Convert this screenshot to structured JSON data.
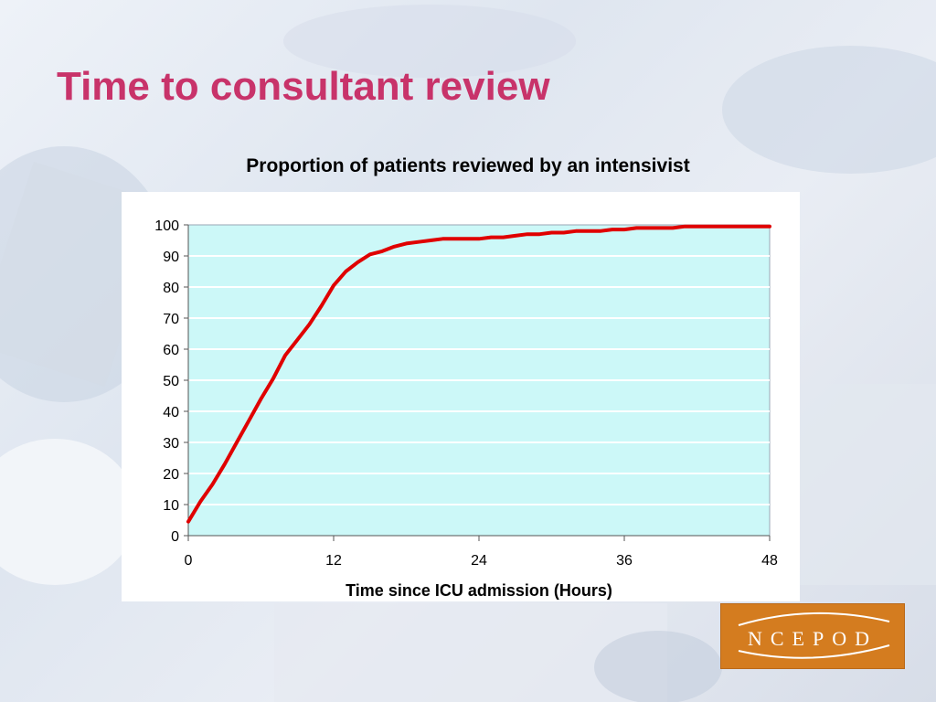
{
  "slide": {
    "title": "Time to consultant review"
  },
  "logo": {
    "text": "NCEPOD"
  },
  "colors": {
    "title": "#c8336a",
    "line": "#e00000",
    "plot_area": "#ccf8f8",
    "gridline": "#ffffff",
    "logo_bg": "#d47c1f"
  },
  "chart_data": {
    "type": "line",
    "title": "Proportion of patients reviewed by an intensivist",
    "xlabel": "Time since ICU admission (Hours)",
    "ylabel": "",
    "xlim": [
      0,
      48
    ],
    "ylim": [
      0,
      100
    ],
    "xticks": [
      0,
      12,
      24,
      36,
      48
    ],
    "yticks": [
      0,
      10,
      20,
      30,
      40,
      50,
      60,
      70,
      80,
      90,
      100
    ],
    "grid": "horizontal",
    "legend": "none",
    "series": [
      {
        "color": "#e00000",
        "x": [
          0,
          1,
          2,
          3,
          4,
          5,
          6,
          7,
          8,
          9,
          10,
          11,
          12,
          13,
          14,
          15,
          16,
          17,
          18,
          19,
          20,
          21,
          22,
          23,
          24,
          25,
          26,
          27,
          28,
          29,
          30,
          31,
          32,
          33,
          34,
          35,
          36,
          37,
          38,
          39,
          40,
          41,
          42,
          43,
          44,
          45,
          46,
          47,
          48
        ],
        "y": [
          4.5,
          11,
          16.5,
          23,
          30,
          37,
          44,
          50.5,
          58,
          63,
          68,
          74,
          80.5,
          85,
          88,
          90.5,
          91.5,
          93,
          94,
          94.5,
          95,
          95.5,
          95.5,
          95.5,
          95.5,
          96,
          96,
          96.5,
          97,
          97,
          97.5,
          97.5,
          98,
          98,
          98,
          98.5,
          98.5,
          99,
          99,
          99,
          99,
          99.5,
          99.5,
          99.5,
          99.5,
          99.5,
          99.5,
          99.5,
          99.5
        ]
      }
    ]
  }
}
